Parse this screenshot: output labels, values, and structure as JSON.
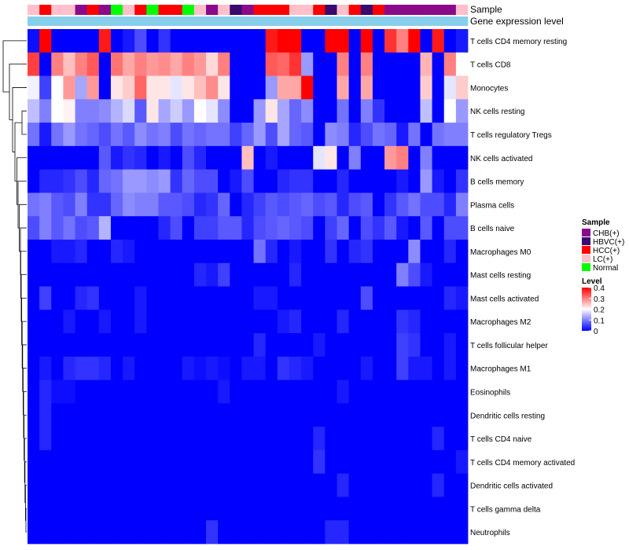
{
  "chart_data": {
    "type": "heatmap",
    "title": "",
    "annotation_rows": [
      {
        "label": "Sample"
      },
      {
        "label": "Gene expression level"
      }
    ],
    "sample_groups": [
      "LC(+)",
      "HCC(+)",
      "LC(+)",
      "LC(+)",
      "CHB(+)",
      "HCC(+)",
      "CHB(+)",
      "Normal",
      "LC(+)",
      "HCC(+)",
      "Normal",
      "HCC(+)",
      "HCC(+)",
      "Normal",
      "LC(+)",
      "CHB(+)",
      "LC(+)",
      "HBVC(+)",
      "CHB(+)",
      "HCC(+)",
      "HCC(+)",
      "HCC(+)",
      "LC(+)",
      "LC(+)",
      "HCC(+)",
      "HBVC(+)",
      "LC(+)",
      "HCC(+)",
      "HBVC(+)",
      "HCC(+)",
      "CHB(+)",
      "CHB(+)",
      "CHB(+)",
      "CHB(+)",
      "CHB(+)",
      "CHB(+)",
      "LC(+)"
    ],
    "gene_expression_level": [
      "high",
      "high",
      "high",
      "high",
      "high",
      "high",
      "high",
      "high",
      "high",
      "high",
      "high",
      "high",
      "high",
      "high",
      "high",
      "high",
      "high",
      "high",
      "high",
      "high",
      "high",
      "high",
      "high",
      "high",
      "high",
      "high",
      "high",
      "high",
      "high",
      "high",
      "high",
      "high",
      "high",
      "high",
      "high",
      "high",
      "high"
    ],
    "rows": [
      "T cells CD4 memory resting",
      "T cells CD8",
      "Monocytes",
      "NK cells resting",
      "T cells regulatory  Tregs",
      "NK cells activated",
      "B cells memory",
      "Plasma cells",
      "B cells naive",
      "Macrophages M0",
      "Mast cells resting",
      "Mast cells activated",
      "Macrophages M2",
      "T cells follicular helper",
      "Macrophages M1",
      "Eosinophils",
      "Dendritic cells resting",
      "T cells CD4 naive",
      "T cells CD4 memory activated",
      "Dendritic cells activated",
      "T cells gamma delta",
      "Neutrophils"
    ],
    "values": [
      [
        0.01,
        0.4,
        0.0,
        0.0,
        0.0,
        0.0,
        0.38,
        0.0,
        0.02,
        0.06,
        0.0,
        0.04,
        0.0,
        0.0,
        0.0,
        0.0,
        0.0,
        0.0,
        0.0,
        0.0,
        0.38,
        0.4,
        0.4,
        0.0,
        0.0,
        0.4,
        0.4,
        0.0,
        0.4,
        0.0,
        0.36,
        0.3,
        0.4,
        0.0,
        0.38,
        0.0,
        0.02
      ],
      [
        0.35,
        0.0,
        0.3,
        0.25,
        0.3,
        0.33,
        0.0,
        0.31,
        0.27,
        0.3,
        0.28,
        0.29,
        0.27,
        0.3,
        0.28,
        0.23,
        0.3,
        0.0,
        0.0,
        0.0,
        0.33,
        0.32,
        0.36,
        0.12,
        0.0,
        0.0,
        0.3,
        0.0,
        0.3,
        0.0,
        0.0,
        0.0,
        0.0,
        0.26,
        0.0,
        0.3,
        0.2
      ],
      [
        0.19,
        0.05,
        0.2,
        0.28,
        0.13,
        0.28,
        0.0,
        0.22,
        0.24,
        0.32,
        0.22,
        0.22,
        0.18,
        0.22,
        0.25,
        0.29,
        0.22,
        0.0,
        0.0,
        0.0,
        0.12,
        0.27,
        0.27,
        0.4,
        0.0,
        0.0,
        0.27,
        0.0,
        0.27,
        0.0,
        0.0,
        0.0,
        0.0,
        0.24,
        0.0,
        0.18,
        0.24
      ],
      [
        0.15,
        0.1,
        0.2,
        0.21,
        0.1,
        0.1,
        0.11,
        0.14,
        0.17,
        0.07,
        0.22,
        0.13,
        0.16,
        0.12,
        0.2,
        0.18,
        0.11,
        0.0,
        0.0,
        0.12,
        0.22,
        0.13,
        0.08,
        0.11,
        0.0,
        0.0,
        0.09,
        0.0,
        0.1,
        0.04,
        0.0,
        0.0,
        0.0,
        0.15,
        0.0,
        0.2,
        0.12
      ],
      [
        0.09,
        0.02,
        0.09,
        0.12,
        0.09,
        0.08,
        0.06,
        0.09,
        0.07,
        0.11,
        0.09,
        0.1,
        0.06,
        0.09,
        0.08,
        0.09,
        0.09,
        0.05,
        0.08,
        0.12,
        0.06,
        0.13,
        0.08,
        0.07,
        0.0,
        0.11,
        0.1,
        0.03,
        0.06,
        0.09,
        0.08,
        0.02,
        0.09,
        0.0,
        0.09,
        0.1,
        0.1
      ],
      [
        0.0,
        0.0,
        0.0,
        0.0,
        0.0,
        0.0,
        0.07,
        0.02,
        0.04,
        0.03,
        0.0,
        0.02,
        0.0,
        0.06,
        0.03,
        0.0,
        0.0,
        0.0,
        0.25,
        0.0,
        0.02,
        0.0,
        0.0,
        0.0,
        0.18,
        0.22,
        0.0,
        0.1,
        0.0,
        0.0,
        0.28,
        0.3,
        0.0,
        0.1,
        0.0,
        0.0,
        0.0
      ],
      [
        0.0,
        0.03,
        0.03,
        0.04,
        0.06,
        0.03,
        0.08,
        0.09,
        0.12,
        0.12,
        0.11,
        0.12,
        0.04,
        0.08,
        0.06,
        0.06,
        0.0,
        0.02,
        0.06,
        0.0,
        0.0,
        0.03,
        0.04,
        0.04,
        0.0,
        0.0,
        0.03,
        0.0,
        0.0,
        0.0,
        0.0,
        0.02,
        0.0,
        0.12,
        0.02,
        0.0,
        0.04
      ],
      [
        0.09,
        0.1,
        0.07,
        0.06,
        0.1,
        0.04,
        0.04,
        0.08,
        0.11,
        0.1,
        0.1,
        0.07,
        0.07,
        0.06,
        0.03,
        0.04,
        0.08,
        0.0,
        0.03,
        0.05,
        0.07,
        0.06,
        0.07,
        0.08,
        0.06,
        0.07,
        0.03,
        0.06,
        0.07,
        0.0,
        0.04,
        0.07,
        0.09,
        0.06,
        0.06,
        0.03,
        0.1
      ],
      [
        0.06,
        0.1,
        0.07,
        0.09,
        0.06,
        0.07,
        0.14,
        0.0,
        0.0,
        0.0,
        0.0,
        0.03,
        0.06,
        0.0,
        0.05,
        0.05,
        0.07,
        0.07,
        0.03,
        0.06,
        0.07,
        0.08,
        0.07,
        0.06,
        0.0,
        0.05,
        0.08,
        0.0,
        0.06,
        0.04,
        0.07,
        0.02,
        0.0,
        0.07,
        0.0,
        0.06,
        0.06
      ],
      [
        0.0,
        0.0,
        0.02,
        0.02,
        0.03,
        0.0,
        0.0,
        0.03,
        0.02,
        0.0,
        0.0,
        0.0,
        0.0,
        0.0,
        0.0,
        0.0,
        0.0,
        0.0,
        0.0,
        0.09,
        0.03,
        0.0,
        0.02,
        0.0,
        0.0,
        0.04,
        0.0,
        0.03,
        0.04,
        0.0,
        0.0,
        0.0,
        0.11,
        0.0,
        0.0,
        0.03,
        0.0
      ],
      [
        0.0,
        0.0,
        0.0,
        0.0,
        0.0,
        0.0,
        0.0,
        0.0,
        0.0,
        0.0,
        0.0,
        0.0,
        0.0,
        0.0,
        0.03,
        0.02,
        0.05,
        0.0,
        0.0,
        0.0,
        0.0,
        0.0,
        0.03,
        0.0,
        0.0,
        0.0,
        0.0,
        0.0,
        0.0,
        0.0,
        0.0,
        0.1,
        0.06,
        0.02,
        0.0,
        0.0,
        0.0
      ],
      [
        0.0,
        0.05,
        0.0,
        0.0,
        0.03,
        0.04,
        0.0,
        0.0,
        0.0,
        0.02,
        0.0,
        0.0,
        0.0,
        0.0,
        0.0,
        0.0,
        0.0,
        0.0,
        0.0,
        0.02,
        0.02,
        0.0,
        0.0,
        0.0,
        0.0,
        0.0,
        0.0,
        0.0,
        0.06,
        0.0,
        0.0,
        0.0,
        0.0,
        0.0,
        0.0,
        0.03,
        0.02
      ],
      [
        0.0,
        0.0,
        0.0,
        0.02,
        0.0,
        0.0,
        0.02,
        0.0,
        0.0,
        0.02,
        0.0,
        0.0,
        0.0,
        0.0,
        0.0,
        0.0,
        0.0,
        0.0,
        0.0,
        0.0,
        0.0,
        0.02,
        0.03,
        0.0,
        0.0,
        0.0,
        0.03,
        0.0,
        0.0,
        0.0,
        0.0,
        0.04,
        0.03,
        0.0,
        0.0,
        0.0,
        0.0
      ],
      [
        0.0,
        0.0,
        0.0,
        0.0,
        0.0,
        0.0,
        0.0,
        0.0,
        0.0,
        0.0,
        0.0,
        0.0,
        0.0,
        0.0,
        0.0,
        0.0,
        0.0,
        0.0,
        0.0,
        0.03,
        0.0,
        0.0,
        0.0,
        0.0,
        0.02,
        0.0,
        0.0,
        0.0,
        0.0,
        0.0,
        0.0,
        0.05,
        0.04,
        0.0,
        0.0,
        0.02,
        0.0
      ],
      [
        0.0,
        0.02,
        0.0,
        0.03,
        0.04,
        0.04,
        0.03,
        0.0,
        0.02,
        0.0,
        0.0,
        0.0,
        0.0,
        0.02,
        0.01,
        0.02,
        0.01,
        0.0,
        0.02,
        0.02,
        0.0,
        0.04,
        0.03,
        0.02,
        0.0,
        0.0,
        0.0,
        0.0,
        0.02,
        0.0,
        0.0,
        0.05,
        0.02,
        0.02,
        0.0,
        0.02,
        0.0
      ],
      [
        0.0,
        0.03,
        0.01,
        0.01,
        0.0,
        0.0,
        0.0,
        0.0,
        0.0,
        0.0,
        0.0,
        0.0,
        0.0,
        0.0,
        0.0,
        0.0,
        0.02,
        0.0,
        0.0,
        0.0,
        0.0,
        0.0,
        0.0,
        0.0,
        0.0,
        0.0,
        0.02,
        0.0,
        0.0,
        0.0,
        0.0,
        0.0,
        0.0,
        0.0,
        0.0,
        0.0,
        0.0
      ],
      [
        0.0,
        0.03,
        0.0,
        0.0,
        0.0,
        0.0,
        0.0,
        0.0,
        0.0,
        0.0,
        0.0,
        0.0,
        0.0,
        0.0,
        0.0,
        0.0,
        0.0,
        0.0,
        0.0,
        0.0,
        0.0,
        0.0,
        0.0,
        0.0,
        0.0,
        0.0,
        0.0,
        0.0,
        0.0,
        0.0,
        0.0,
        0.0,
        0.0,
        0.0,
        0.0,
        0.0,
        0.0
      ],
      [
        0.0,
        0.03,
        0.0,
        0.0,
        0.0,
        0.0,
        0.0,
        0.0,
        0.0,
        0.0,
        0.0,
        0.0,
        0.0,
        0.0,
        0.0,
        0.0,
        0.0,
        0.0,
        0.0,
        0.0,
        0.0,
        0.0,
        0.0,
        0.0,
        0.03,
        0.0,
        0.0,
        0.0,
        0.0,
        0.0,
        0.0,
        0.0,
        0.0,
        0.0,
        0.03,
        0.0,
        0.0
      ],
      [
        0.0,
        0.0,
        0.0,
        0.0,
        0.0,
        0.0,
        0.0,
        0.0,
        0.0,
        0.0,
        0.0,
        0.0,
        0.0,
        0.0,
        0.0,
        0.0,
        0.0,
        0.0,
        0.0,
        0.0,
        0.0,
        0.0,
        0.0,
        0.0,
        0.04,
        0.0,
        0.0,
        0.0,
        0.0,
        0.0,
        0.0,
        0.0,
        0.0,
        0.0,
        0.0,
        0.0,
        0.02
      ],
      [
        0.0,
        0.0,
        0.0,
        0.0,
        0.0,
        0.0,
        0.0,
        0.0,
        0.0,
        0.0,
        0.0,
        0.0,
        0.0,
        0.0,
        0.0,
        0.0,
        0.0,
        0.0,
        0.0,
        0.0,
        0.0,
        0.0,
        0.0,
        0.0,
        0.0,
        0.0,
        0.03,
        0.0,
        0.0,
        0.0,
        0.0,
        0.0,
        0.0,
        0.0,
        0.03,
        0.0,
        0.0
      ],
      [
        0.0,
        0.0,
        0.0,
        0.0,
        0.0,
        0.0,
        0.0,
        0.0,
        0.0,
        0.0,
        0.0,
        0.0,
        0.0,
        0.0,
        0.0,
        0.0,
        0.0,
        0.0,
        0.0,
        0.0,
        0.0,
        0.0,
        0.0,
        0.0,
        0.0,
        0.0,
        0.0,
        0.0,
        0.0,
        0.0,
        0.0,
        0.0,
        0.0,
        0.0,
        0.0,
        0.0,
        0.0
      ],
      [
        0.0,
        0.0,
        0.0,
        0.0,
        0.0,
        0.0,
        0.0,
        0.0,
        0.0,
        0.0,
        0.0,
        0.0,
        0.0,
        0.0,
        0.0,
        0.04,
        0.0,
        0.0,
        0.0,
        0.0,
        0.0,
        0.0,
        0.0,
        0.0,
        0.0,
        0.03,
        0.03,
        0.0,
        0.0,
        0.0,
        0.0,
        0.0,
        0.0,
        0.0,
        0.0,
        0.0,
        0.0
      ]
    ],
    "color_scale": {
      "low": "#0000ff",
      "mid": "#ffffff",
      "high": "#ff0000",
      "min": 0,
      "mid_value": 0.2,
      "max": 0.4
    },
    "legend_sample": {
      "title": "Sample",
      "items": [
        {
          "label": "CHB(+)",
          "color": "#8b0a8b"
        },
        {
          "label": "HBVC(+)",
          "color": "#3a0a6e"
        },
        {
          "label": "HCC(+)",
          "color": "#ff0000"
        },
        {
          "label": "LC(+)",
          "color": "#ffc0cb"
        },
        {
          "label": "Normal",
          "color": "#00ff00"
        }
      ]
    },
    "legend_level": {
      "title": "Level",
      "ticks": [
        "0.4",
        "0.3",
        "0.2",
        "0.1",
        "0"
      ],
      "tick_values": [
        0.4,
        0.3,
        0.2,
        0.1,
        0
      ]
    },
    "gene_expression_color": "#87ceeb"
  }
}
